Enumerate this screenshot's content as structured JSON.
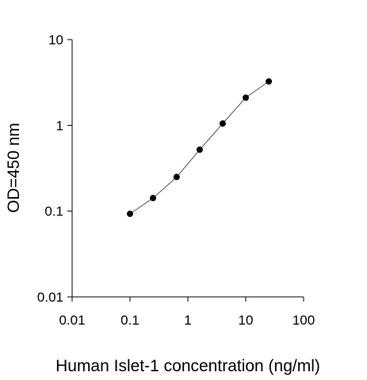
{
  "chart_data": {
    "type": "scatter",
    "title": "",
    "xlabel": "Human Islet-1 concentration (ng/ml)",
    "ylabel": "OD=450 nm",
    "xscale": "log",
    "yscale": "log",
    "xlim": [
      0.01,
      100
    ],
    "ylim": [
      0.01,
      10
    ],
    "x_ticks": [
      0.01,
      0.1,
      1,
      10,
      100
    ],
    "x_tick_labels": [
      "0.01",
      "0.1",
      "1",
      "10",
      "100"
    ],
    "y_ticks": [
      0.01,
      0.1,
      1,
      10
    ],
    "y_tick_labels": [
      "0.01",
      "0.1",
      "1",
      "10"
    ],
    "grid": false,
    "legend": "none",
    "series": [
      {
        "x": [
          0.1,
          0.25,
          0.64,
          1.6,
          4,
          10,
          25
        ],
        "y": [
          0.093,
          0.142,
          0.25,
          0.52,
          1.05,
          2.1,
          3.25
        ],
        "marker": "filled-circle",
        "color": "#000000",
        "fit_line": true,
        "line_color": "#555555"
      }
    ]
  }
}
